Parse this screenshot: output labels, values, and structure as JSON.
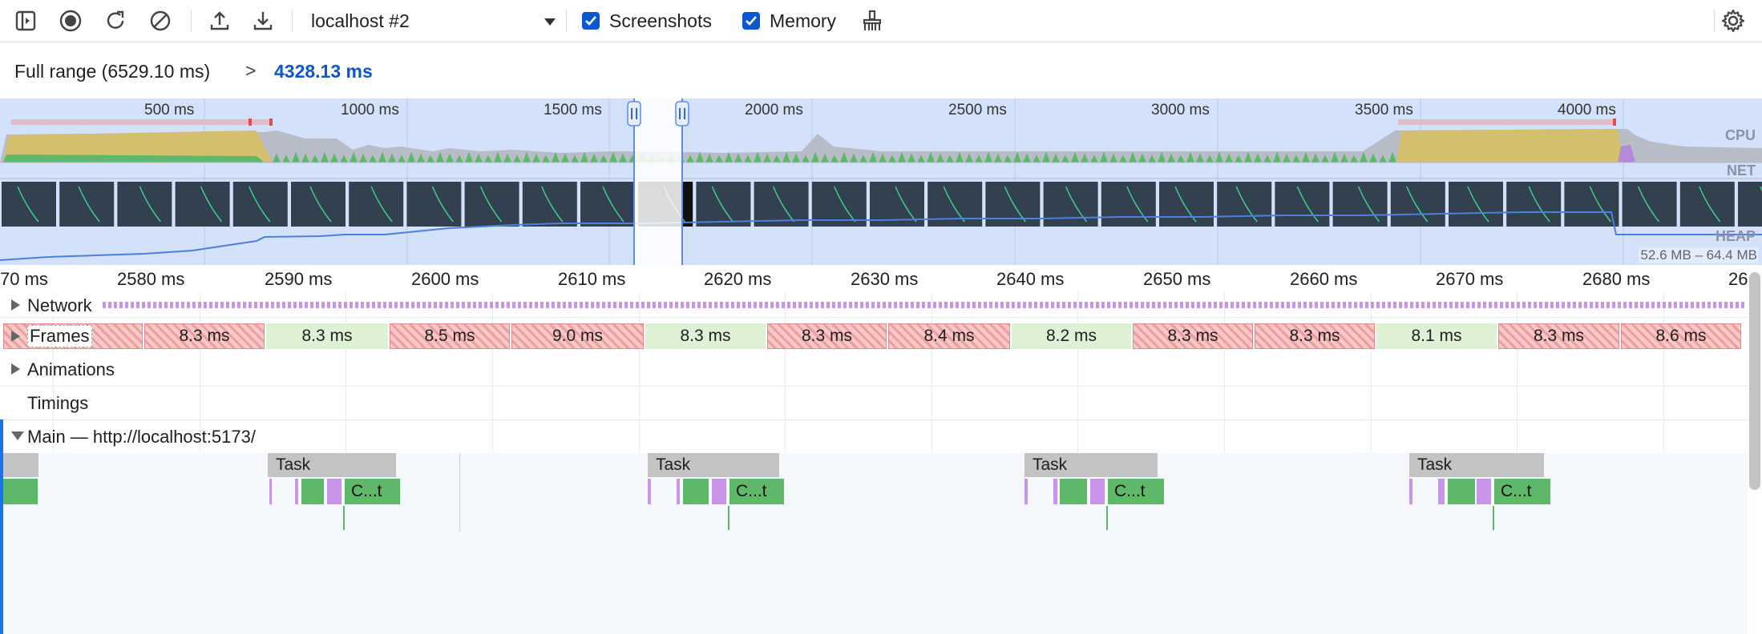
{
  "toolbar": {
    "target": "localhost #2",
    "screenshots_label": "Screenshots",
    "screenshots_checked": true,
    "memory_label": "Memory",
    "memory_checked": true,
    "icons": [
      "sidebar-toggle-icon",
      "record-icon",
      "reload-icon",
      "clear-icon",
      "upload-icon",
      "download-icon",
      "dropdown-caret-icon",
      "garbage-collect-icon",
      "settings-gear-icon"
    ]
  },
  "breadcrumb": {
    "full_range": "Full range (6529.10 ms)",
    "separator": ">",
    "current": "4328.13 ms"
  },
  "overview": {
    "labels": [
      "500 ms",
      "1000 ms",
      "1500 ms",
      "2000 ms",
      "2500 ms",
      "3000 ms",
      "3500 ms",
      "4000 ms"
    ],
    "tracks": {
      "cpu": "CPU",
      "net": "NET",
      "heap": "HEAP"
    },
    "heap_range": "52.6 MB – 64.4 MB"
  },
  "ruler": [
    "70 ms",
    "2580 ms",
    "2590 ms",
    "2600 ms",
    "2610 ms",
    "2620 ms",
    "2630 ms",
    "2640 ms",
    "2650 ms",
    "2660 ms",
    "2670 ms",
    "2680 ms",
    "26"
  ],
  "tracks": {
    "network": "Network",
    "frames": "Frames",
    "animations": "Animations",
    "timings": "Timings",
    "main": "Main — http://localhost:5173/"
  },
  "frames": [
    {
      "label": "ms",
      "dropped": true
    },
    {
      "label": "8.3 ms",
      "dropped": true
    },
    {
      "label": "8.3 ms",
      "dropped": false
    },
    {
      "label": "8.5 ms",
      "dropped": true
    },
    {
      "label": "9.0 ms",
      "dropped": true
    },
    {
      "label": "8.3 ms",
      "dropped": false
    },
    {
      "label": "8.3 ms",
      "dropped": true
    },
    {
      "label": "8.4 ms",
      "dropped": true
    },
    {
      "label": "8.2 ms",
      "dropped": false
    },
    {
      "label": "8.3 ms",
      "dropped": true
    },
    {
      "label": "8.3 ms",
      "dropped": true
    },
    {
      "label": "8.1 ms",
      "dropped": false
    },
    {
      "label": "8.3 ms",
      "dropped": true
    },
    {
      "label": "8.6 ms",
      "dropped": true
    }
  ],
  "main": {
    "task_label": "Task",
    "call_label": "C...t",
    "colors": {
      "task": "#c3c3c3",
      "script": "#5fb86a",
      "layout": "#c995ea",
      "dropped": "#ee9c9c"
    }
  }
}
